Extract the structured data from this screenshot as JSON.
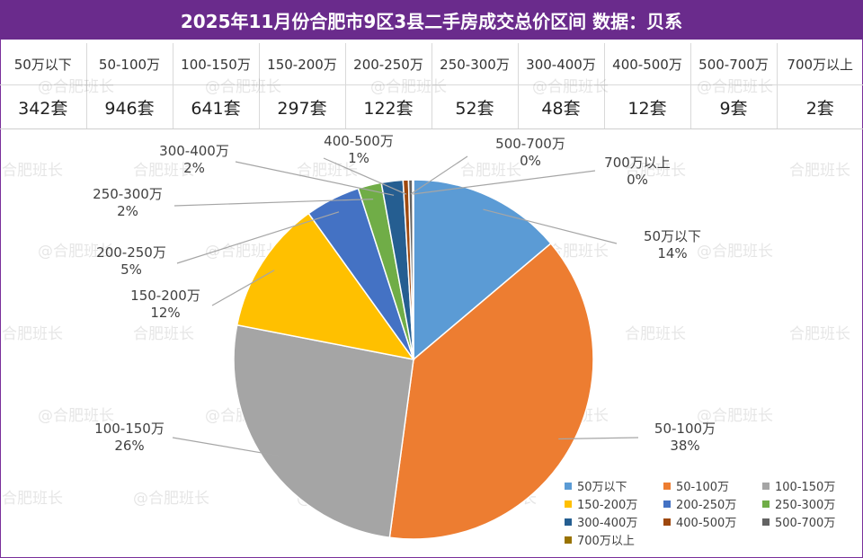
{
  "title": "2025年11月份合肥市9区3县二手房成交总价区间 数据：贝系",
  "watermark": "@合肥班长",
  "watermark_alt": "合肥班长",
  "table": {
    "headers": [
      "50万以下",
      "50-100万",
      "100-150万",
      "150-200万",
      "200-250万",
      "250-300万",
      "300-400万",
      "400-500万",
      "500-700万",
      "700万以上"
    ],
    "values": [
      "342套",
      "946套",
      "641套",
      "297套",
      "122套",
      "52套",
      "48套",
      "12套",
      "9套",
      "2套"
    ]
  },
  "chart_data": {
    "type": "pie",
    "title": "2025年11月份合肥市9区3县二手房成交总价区间 数据：贝系",
    "unit": "套",
    "categories": [
      "50万以下",
      "50-100万",
      "100-150万",
      "150-200万",
      "200-250万",
      "250-300万",
      "300-400万",
      "400-500万",
      "500-700万",
      "700万以上"
    ],
    "values": [
      342,
      946,
      641,
      297,
      122,
      52,
      48,
      12,
      9,
      2
    ],
    "percent_labels": [
      "14%",
      "38%",
      "26%",
      "12%",
      "5%",
      "2%",
      "2%",
      "1%",
      "0%",
      "0%"
    ],
    "colors": [
      "#5b9bd5",
      "#ed7d31",
      "#a5a5a5",
      "#ffc000",
      "#4472c4",
      "#70ad47",
      "#255e91",
      "#9e480e",
      "#636363",
      "#997300"
    ],
    "legend_position": "bottom-right"
  }
}
